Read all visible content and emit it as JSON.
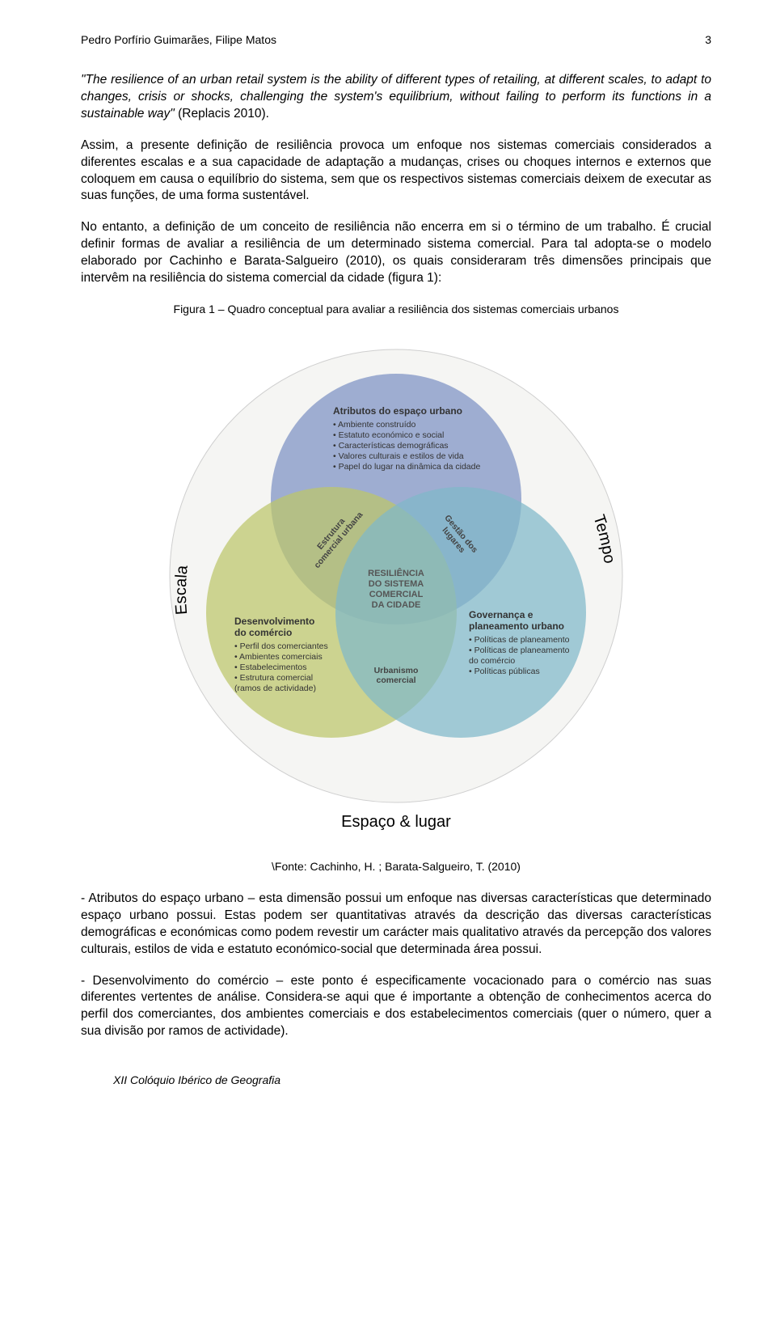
{
  "header": {
    "authors": "Pedro Porfírio Guimarães, Filipe Matos",
    "page_number": "3"
  },
  "paragraphs": {
    "quote_part1": "\"The resilience of an urban retail system is the ability of different types of retailing, at different scales, to adapt to changes, crisis or shocks, challenging the system's equilibrium, without failing to perform its functions in a sustainable way\"",
    "quote_part2": " (Replacis 2010).",
    "p2": "Assim, a presente definição de resiliência provoca um enfoque nos sistemas comerciais considerados a diferentes escalas e a sua capacidade de adaptação a mudanças, crises ou choques internos e externos que coloquem em causa o equilíbrio do sistema, sem que os respectivos sistemas comerciais deixem de executar as suas funções, de uma forma sustentável.",
    "p3": "No entanto, a definição de um conceito de resiliência não encerra em si o término de um trabalho. É crucial definir formas de avaliar a resiliência de um determinado sistema comercial. Para tal adopta-se o modelo elaborado por Cachinho e Barata-Salgueiro (2010), os quais consideraram três dimensões principais que intervêm na resiliência do sistema comercial da cidade (figura 1):",
    "p4": "- Atributos do espaço urbano – esta dimensão possui um enfoque nas diversas características que determinado espaço urbano possui. Estas podem ser quantitativas através da descrição das diversas características demográficas e económicas como podem revestir um carácter mais qualitativo através da percepção dos valores culturais, estilos de vida e estatuto económico-social que determinada área possui.",
    "p5": "- Desenvolvimento do comércio – este ponto é especificamente vocacionado para o comércio nas suas diferentes vertentes de análise. Considera-se aqui que é importante a obtenção de conhecimentos acerca do perfil dos comerciantes, dos ambientes comerciais e dos estabelecimentos comerciais (quer o número, quer a sua divisão por ramos de actividade)."
  },
  "figure": {
    "caption": "Figura 1 – Quadro conceptual para avaliar a resiliência dos sistemas comerciais urbanos",
    "source": "\\Fonte: Cachinho, H. ; Barata-Salgueiro, T. (2010)",
    "outer_labels": {
      "left": "Escala",
      "right": "Tempo",
      "bottom": "Espaço & lugar"
    },
    "colors": {
      "outer_circle_fill": "#f5f5f3",
      "outer_circle_stroke": "#cfcfcf",
      "top_circle": "#7d91c4",
      "left_circle": "#bcc66a",
      "right_circle": "#7fb8c9",
      "opacity": 0.72
    },
    "circles": {
      "top": {
        "title": "Atributos do espaço urbano",
        "items": [
          "• Ambiente construído",
          "• Estatuto económico e social",
          "• Características demográficas",
          "• Valores culturais e estilos de vida",
          "• Papel do lugar na dinâmica da cidade"
        ]
      },
      "left": {
        "title": "Desenvolvimento do comércio",
        "items": [
          "• Perfil dos comerciantes",
          "• Ambientes comerciais",
          "• Estabelecimentos",
          "• Estrutura comercial",
          "  (ramos de actividade)"
        ]
      },
      "right": {
        "title": "Governança e planeamento urbano",
        "items": [
          "• Políticas de planeamento",
          "• Políticas de planeamento",
          "  do comércio",
          "• Políticas públicas"
        ]
      }
    },
    "overlaps": {
      "center": [
        "RESILIÊNCIA",
        "DO SISTEMA",
        "COMERCIAL",
        "DA CIDADE"
      ],
      "top_left": [
        "Estrutura",
        "comercial urbana"
      ],
      "top_right": [
        "Gestão dos",
        "lugares"
      ],
      "bottom": [
        "Urbanismo",
        "comercial"
      ]
    }
  },
  "footer": "XII Colóquio Ibérico de Geografia"
}
